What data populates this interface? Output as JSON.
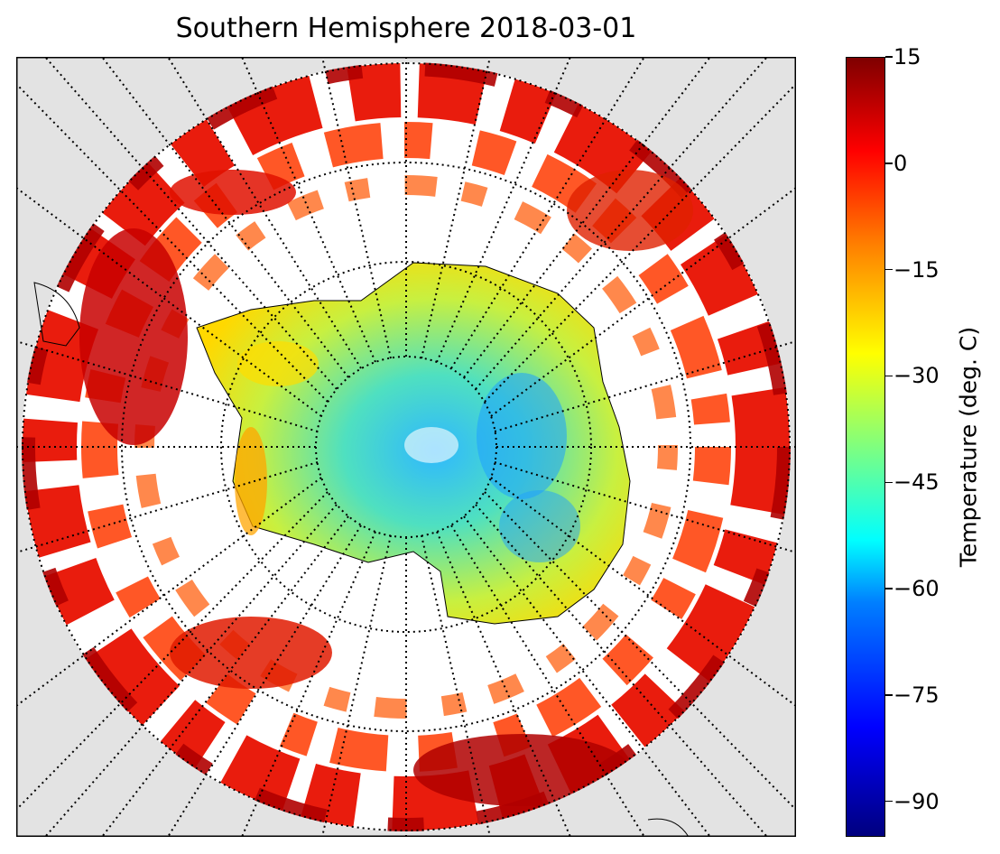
{
  "title": "Southern Hemisphere 2018-03-01",
  "colorbar": {
    "label": "Temperature (deg. C)",
    "range": [
      -95,
      15
    ],
    "ticks": [
      "15",
      "0",
      "−15",
      "−30",
      "−45",
      "−60",
      "−75",
      "−90"
    ],
    "tick_values": [
      15,
      0,
      -15,
      -30,
      -45,
      -60,
      -75,
      -90
    ],
    "colormap": "jet"
  },
  "map": {
    "projection": "south-polar-stereographic",
    "background_color": "#e3e3e3",
    "graticule_style": "dotted"
  }
}
